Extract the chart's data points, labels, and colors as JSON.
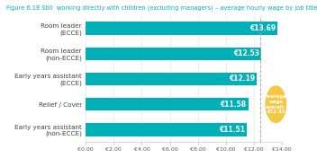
{
  "title": "Figure 6.18 Still  working directly with children (excluding managers) – average hourly wage by job title",
  "categories": [
    "Early years assistant\n(non-ECCE)",
    "Relief / Cover",
    "Early years assistant\n(ECCE)",
    "Room leader\n(non-ECCE)",
    "Room leader\n(ECCE)"
  ],
  "values": [
    11.51,
    11.58,
    12.19,
    12.53,
    13.69
  ],
  "labels": [
    "€11.51",
    "€11.58",
    "€12.19",
    "€12.53",
    "€13.69"
  ],
  "bar_color": "#00B0B9",
  "xlim": [
    0,
    14
  ],
  "xtick_values": [
    0,
    2,
    4,
    6,
    8,
    10,
    12,
    14
  ],
  "xtick_labels": [
    "€0.00",
    "€2.00",
    "€4.00",
    "€6.00",
    "€8.00",
    "€10.00",
    "€12.00",
    "€14.00"
  ],
  "avg_wage_value": 12.43,
  "avg_wage_label": "Average\nwage\noverall:\n€12.43",
  "avg_color": "#F5C842",
  "dashed_line_x": 12.43,
  "background_color": "#ffffff",
  "title_color": "#00B0B9",
  "label_fontsize": 5.2,
  "title_fontsize": 4.8,
  "bar_label_fontsize": 5.5
}
